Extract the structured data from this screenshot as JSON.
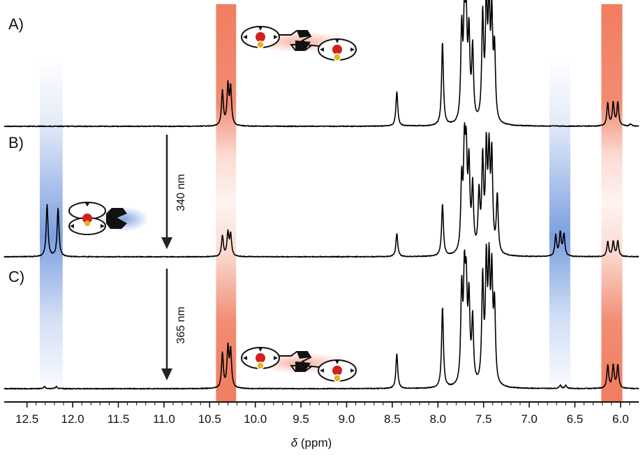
{
  "chart_data": {
    "type": "line",
    "title": "",
    "xlabel_symbol": "δ",
    "xlabel_unit": " (ppm)",
    "xlim": [
      12.75,
      5.8
    ],
    "x_ticks": [
      "12.5",
      "12.0",
      "11.5",
      "11.0",
      "10.5",
      "10.0",
      "9.5",
      "9.0",
      "8.5",
      "8.0",
      "7.5",
      "7.0",
      "6.5",
      "6.0"
    ],
    "x_tick_values": [
      12.5,
      12.0,
      11.5,
      11.0,
      10.5,
      10.0,
      9.5,
      9.0,
      8.5,
      8.0,
      7.5,
      7.0,
      6.5,
      6.0
    ],
    "highlight_bands": [
      {
        "color": "#ef6f4f",
        "from": 10.43,
        "to": 10.21
      },
      {
        "color": "#ef6f4f",
        "from": 6.21,
        "to": 5.98
      },
      {
        "color": "#4f7fd6",
        "from": 12.36,
        "to": 12.11
      },
      {
        "color": "#4f7fd6",
        "from": 6.78,
        "to": 6.55
      }
    ],
    "series": [
      {
        "label": "A)",
        "peaks": [
          [
            10.36,
            0.3
          ],
          [
            10.3,
            0.34
          ],
          [
            10.27,
            0.32
          ],
          [
            8.45,
            0.3
          ],
          [
            7.95,
            0.72
          ],
          [
            7.74,
            0.78
          ],
          [
            7.71,
            0.82
          ],
          [
            7.69,
            0.75
          ],
          [
            7.66,
            0.72
          ],
          [
            7.62,
            0.62
          ],
          [
            7.51,
            0.9
          ],
          [
            7.47,
            1.0
          ],
          [
            7.44,
            0.95
          ],
          [
            7.41,
            0.85
          ],
          [
            7.38,
            0.6
          ],
          [
            6.14,
            0.2
          ],
          [
            6.08,
            0.2
          ],
          [
            6.03,
            0.2
          ],
          [
            5.89,
            0.02
          ]
        ]
      },
      {
        "label": "B)",
        "peaks": [
          [
            12.28,
            0.45
          ],
          [
            12.16,
            0.42
          ],
          [
            10.36,
            0.18
          ],
          [
            10.3,
            0.2
          ],
          [
            10.27,
            0.19
          ],
          [
            8.45,
            0.2
          ],
          [
            7.95,
            0.45
          ],
          [
            7.74,
            0.6
          ],
          [
            7.71,
            0.82
          ],
          [
            7.69,
            0.75
          ],
          [
            7.66,
            0.72
          ],
          [
            7.62,
            0.55
          ],
          [
            7.55,
            0.5
          ],
          [
            7.51,
            0.78
          ],
          [
            7.47,
            0.85
          ],
          [
            7.44,
            0.8
          ],
          [
            7.41,
            0.82
          ],
          [
            7.35,
            0.5
          ],
          [
            6.71,
            0.18
          ],
          [
            6.66,
            0.2
          ],
          [
            6.62,
            0.19
          ],
          [
            6.14,
            0.13
          ],
          [
            6.08,
            0.13
          ],
          [
            6.03,
            0.13
          ]
        ]
      },
      {
        "label": "C)",
        "peaks": [
          [
            12.31,
            0.02
          ],
          [
            12.18,
            0.02
          ],
          [
            10.36,
            0.3
          ],
          [
            10.3,
            0.34
          ],
          [
            10.27,
            0.32
          ],
          [
            8.45,
            0.3
          ],
          [
            7.95,
            0.7
          ],
          [
            7.74,
            0.8
          ],
          [
            7.71,
            0.84
          ],
          [
            7.69,
            0.75
          ],
          [
            7.66,
            0.7
          ],
          [
            7.62,
            0.55
          ],
          [
            7.51,
            0.9
          ],
          [
            7.47,
            1.0
          ],
          [
            7.44,
            0.95
          ],
          [
            7.41,
            0.9
          ],
          [
            7.38,
            0.65
          ],
          [
            6.66,
            0.03
          ],
          [
            6.6,
            0.03
          ],
          [
            6.14,
            0.2
          ],
          [
            6.08,
            0.2
          ],
          [
            6.03,
            0.2
          ]
        ]
      }
    ],
    "annotations": [
      {
        "text": "340 nm",
        "between": [
          "A)",
          "B)"
        ],
        "x": 10.95
      },
      {
        "text": "365 nm",
        "between": [
          "B)",
          "C)"
        ],
        "x": 10.95
      }
    ],
    "grid": false
  },
  "molecule_icons": [
    "open-switch-icon",
    "closed-switch-icon",
    "open-switch-icon"
  ]
}
